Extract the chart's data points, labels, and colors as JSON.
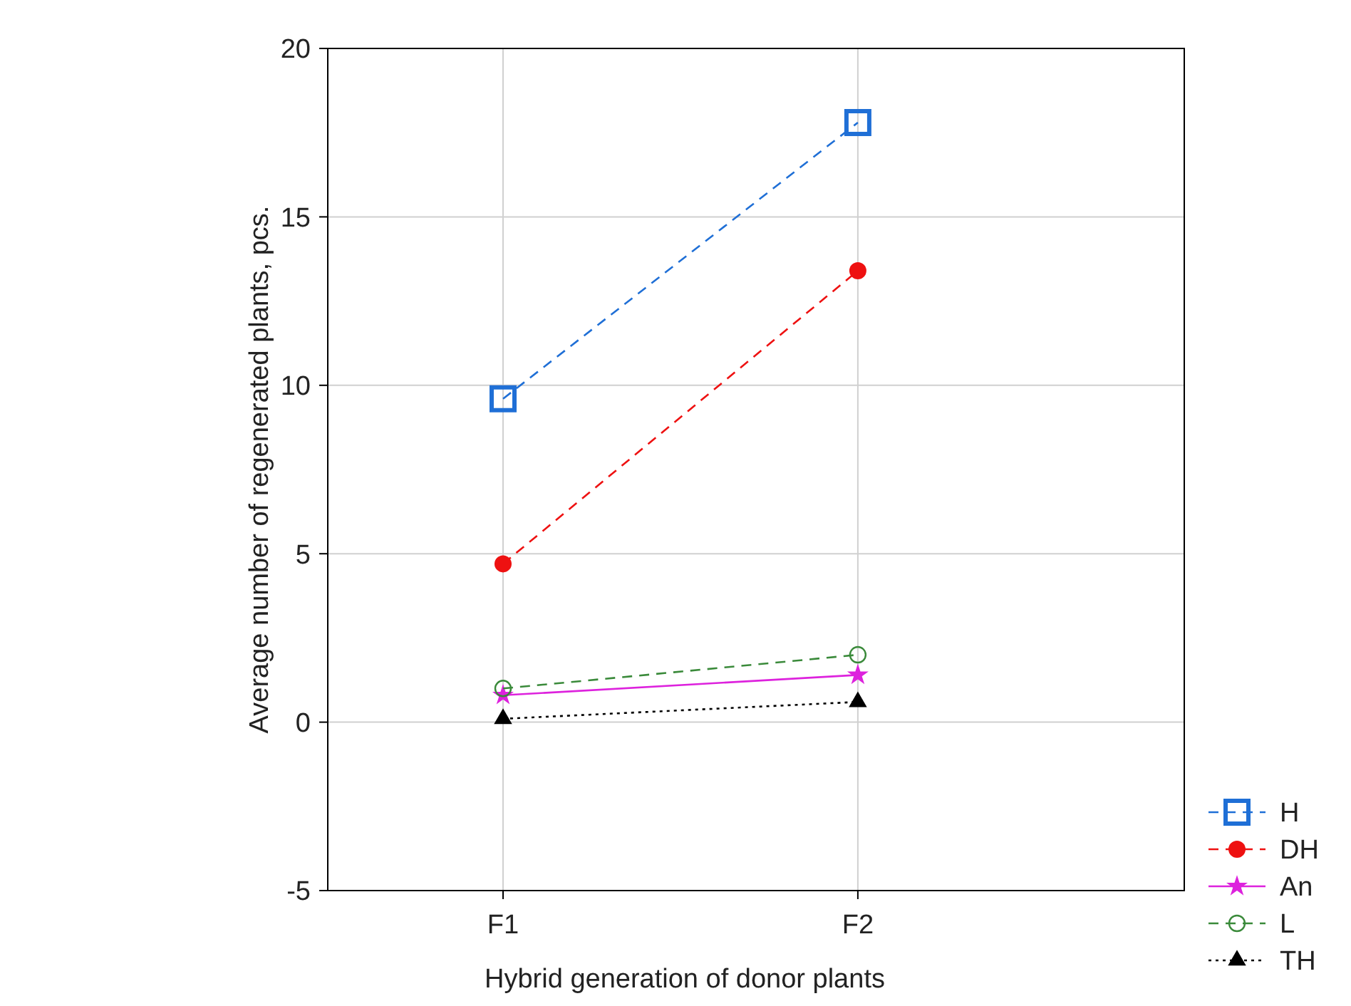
{
  "chart_data": {
    "type": "line",
    "xlabel": "Hybrid generation of donor plants",
    "ylabel": "Average number of regenerated plants, pcs.",
    "categories": [
      "F1",
      "F2"
    ],
    "ylim": [
      -5,
      20
    ],
    "yticks": [
      -5,
      0,
      5,
      10,
      15,
      20
    ],
    "grid": true,
    "legend": "bottom right",
    "series": [
      {
        "name": "H",
        "color": "#1f6fd6",
        "values": [
          9.6,
          17.8
        ],
        "marker": "square",
        "line_style": "dashed"
      },
      {
        "name": "DH",
        "color": "#ee1111",
        "values": [
          4.7,
          13.4
        ],
        "marker": "circle",
        "line_style": "dashed"
      },
      {
        "name": "An",
        "color": "#dd22dd",
        "values": [
          0.8,
          1.4
        ],
        "marker": "star",
        "line_style": "solid"
      },
      {
        "name": "L",
        "color": "#3a8a3a",
        "values": [
          1.0,
          2.0
        ],
        "marker": "circle-open",
        "line_style": "dashed"
      },
      {
        "name": "TH",
        "color": "#000000",
        "values": [
          0.1,
          0.6
        ],
        "marker": "triangle",
        "line_style": "dotted"
      }
    ]
  }
}
